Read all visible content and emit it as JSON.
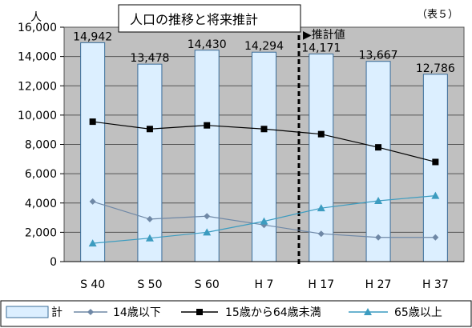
{
  "chart_data": {
    "type": "bar",
    "title": "人口の推移と将来推計",
    "table_label": "（表５）",
    "y_unit": "人",
    "projection_label": "▶推計値",
    "categories": [
      "S 40",
      "S 50",
      "S 60",
      "H 7",
      "H 17",
      "H 27",
      "H 37"
    ],
    "ylim": [
      0,
      16000
    ],
    "yticks": [
      0,
      2000,
      4000,
      6000,
      8000,
      10000,
      12000,
      14000,
      16000
    ],
    "ytick_labels": [
      "0",
      "2,000",
      "4,000",
      "6,000",
      "8,000",
      "10,000",
      "12,000",
      "14,000",
      "16,000"
    ],
    "grid": true,
    "legend_position": "bottom",
    "bar_series": {
      "name": "計",
      "values": [
        14942,
        13478,
        14430,
        14294,
        14171,
        13667,
        12786
      ],
      "labels": [
        "14,942",
        "13,478",
        "14,430",
        "14,294",
        "14,171",
        "13,667",
        "12,786"
      ],
      "color": "#dcefff"
    },
    "series": [
      {
        "name": "14歳以下",
        "type": "line",
        "marker": "diamond",
        "color": "#6f88a6",
        "values": [
          4100,
          2900,
          3100,
          2500,
          1900,
          1650,
          1650
        ]
      },
      {
        "name": "15歳から64歳未満",
        "type": "line",
        "marker": "square",
        "color": "#000000",
        "values": [
          9550,
          9050,
          9300,
          9050,
          8700,
          7800,
          6800
        ]
      },
      {
        "name": "65歳以上",
        "type": "line",
        "marker": "triangle",
        "color": "#3c9cc0",
        "values": [
          1250,
          1600,
          2000,
          2750,
          3650,
          4150,
          4500
        ]
      }
    ]
  }
}
